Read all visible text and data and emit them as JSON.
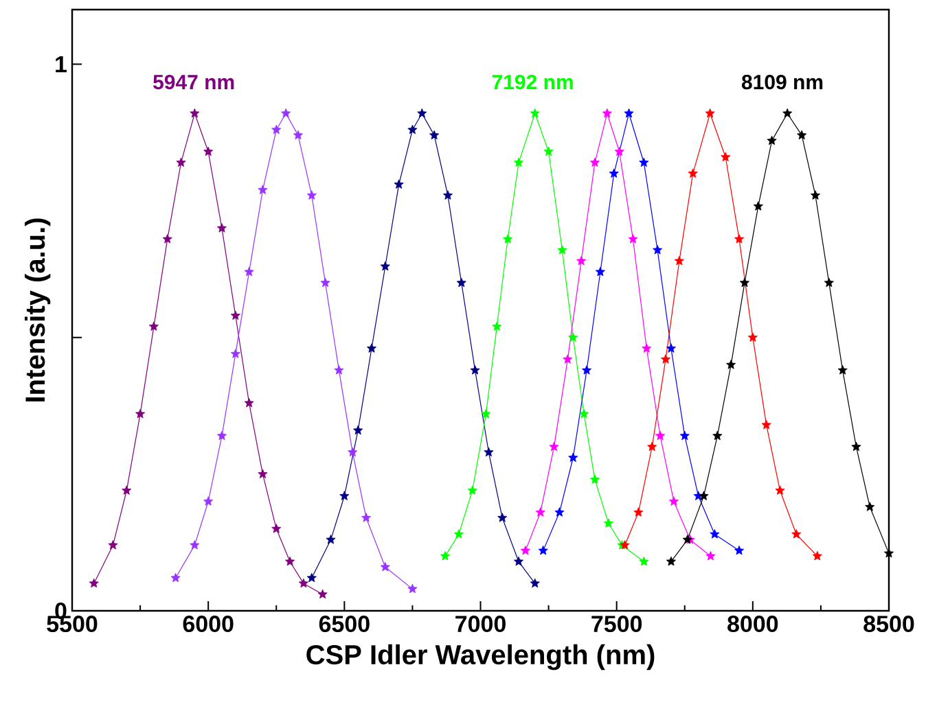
{
  "chart_data": {
    "type": "line",
    "xlabel": "CSP Idler Wavelength (nm)",
    "ylabel": "Intensity (a.u.)",
    "xlim": [
      5500,
      8500
    ],
    "ylim": [
      0,
      1.1
    ],
    "xticks": [
      5500,
      6000,
      6500,
      7000,
      7500,
      8000,
      8500
    ],
    "yticks": [
      0,
      {
        "value": 0.5,
        "label": null
      },
      1
    ],
    "grid": false,
    "marker": "star",
    "line_style": "solid",
    "annotations": [
      {
        "text": "5947 nm",
        "x": 5947,
        "y": 0.91
      },
      {
        "text": "7192 nm",
        "x": 7192,
        "y": 0.91
      },
      {
        "text": "8109 nm",
        "x": 8109,
        "y": 0.91
      }
    ],
    "series": [
      {
        "color": "#800080",
        "x": [
          5580,
          5650,
          5700,
          5750,
          5800,
          5850,
          5900,
          5950,
          6000,
          6050,
          6100,
          6150,
          6200,
          6250,
          6300,
          6350,
          6420
        ],
        "values": [
          0.05,
          0.12,
          0.22,
          0.36,
          0.52,
          0.68,
          0.82,
          0.91,
          0.84,
          0.7,
          0.54,
          0.38,
          0.25,
          0.15,
          0.09,
          0.05,
          0.03
        ]
      },
      {
        "color": "#9933ff",
        "x": [
          5880,
          5950,
          6000,
          6050,
          6100,
          6150,
          6200,
          6250,
          6285,
          6330,
          6380,
          6430,
          6480,
          6530,
          6580,
          6650,
          6750
        ],
        "values": [
          0.06,
          0.12,
          0.2,
          0.32,
          0.47,
          0.62,
          0.77,
          0.88,
          0.91,
          0.87,
          0.76,
          0.6,
          0.44,
          0.29,
          0.17,
          0.08,
          0.04
        ]
      },
      {
        "color": "#000080",
        "x": [
          6380,
          6450,
          6500,
          6550,
          6600,
          6650,
          6700,
          6750,
          6785,
          6830,
          6880,
          6930,
          6980,
          7030,
          7080,
          7140,
          7200
        ],
        "values": [
          0.06,
          0.13,
          0.21,
          0.33,
          0.48,
          0.63,
          0.78,
          0.88,
          0.91,
          0.87,
          0.76,
          0.6,
          0.44,
          0.29,
          0.17,
          0.09,
          0.05
        ]
      },
      {
        "color": "#00ff00",
        "x": [
          6870,
          6920,
          6970,
          7020,
          7060,
          7100,
          7140,
          7200,
          7250,
          7300,
          7340,
          7380,
          7420,
          7470,
          7520,
          7600
        ],
        "values": [
          0.1,
          0.14,
          0.22,
          0.36,
          0.52,
          0.68,
          0.82,
          0.91,
          0.84,
          0.66,
          0.5,
          0.36,
          0.24,
          0.16,
          0.12,
          0.09
        ]
      },
      {
        "color": "#ff00ff",
        "x": [
          7165,
          7220,
          7270,
          7320,
          7370,
          7420,
          7465,
          7510,
          7560,
          7610,
          7660,
          7710,
          7770,
          7845
        ],
        "values": [
          0.11,
          0.18,
          0.3,
          0.46,
          0.64,
          0.82,
          0.91,
          0.84,
          0.68,
          0.48,
          0.32,
          0.2,
          0.13,
          0.1
        ]
      },
      {
        "color": "#0000ff",
        "x": [
          7230,
          7290,
          7340,
          7390,
          7440,
          7490,
          7545,
          7600,
          7650,
          7700,
          7750,
          7800,
          7860,
          7950
        ],
        "values": [
          0.11,
          0.18,
          0.28,
          0.44,
          0.62,
          0.8,
          0.91,
          0.82,
          0.66,
          0.48,
          0.32,
          0.21,
          0.14,
          0.11
        ]
      },
      {
        "color": "#ff0000",
        "x": [
          7530,
          7580,
          7630,
          7680,
          7730,
          7780,
          7843,
          7900,
          7950,
          8000,
          8050,
          8100,
          8160,
          8237
        ],
        "values": [
          0.12,
          0.18,
          0.3,
          0.46,
          0.64,
          0.8,
          0.91,
          0.83,
          0.68,
          0.5,
          0.34,
          0.22,
          0.14,
          0.1
        ]
      },
      {
        "color": "#000000",
        "x": [
          7700,
          7760,
          7820,
          7870,
          7920,
          7970,
          8020,
          8070,
          8127,
          8180,
          8230,
          8280,
          8330,
          8380,
          8430,
          8500
        ],
        "values": [
          0.09,
          0.13,
          0.21,
          0.32,
          0.45,
          0.6,
          0.74,
          0.86,
          0.91,
          0.87,
          0.76,
          0.6,
          0.44,
          0.3,
          0.19,
          0.105
        ]
      }
    ]
  }
}
